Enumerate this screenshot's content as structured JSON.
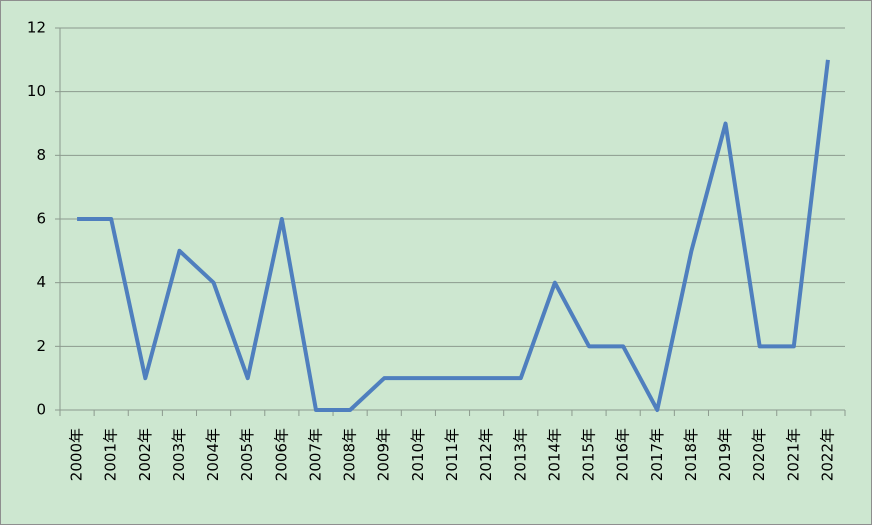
{
  "chart_data": {
    "type": "line",
    "categories": [
      "2000年",
      "2001年",
      "2002年",
      "2003年",
      "2004年",
      "2005年",
      "2006年",
      "2007年",
      "2008年",
      "2009年",
      "2010年",
      "2011年",
      "2012年",
      "2013年",
      "2014年",
      "2015年",
      "2016年",
      "2017年",
      "2018年",
      "2019年",
      "2020年",
      "2021年",
      "2022年"
    ],
    "values": [
      6,
      6,
      1,
      5,
      4,
      1,
      6,
      0,
      0,
      1,
      1,
      1,
      1,
      1,
      4,
      2,
      2,
      0,
      5,
      9,
      2,
      2,
      11
    ],
    "color": "#4f7fbe",
    "ylim": [
      0,
      12
    ],
    "yticks": [
      0,
      2,
      4,
      6,
      8,
      10,
      12
    ],
    "grid": true
  }
}
